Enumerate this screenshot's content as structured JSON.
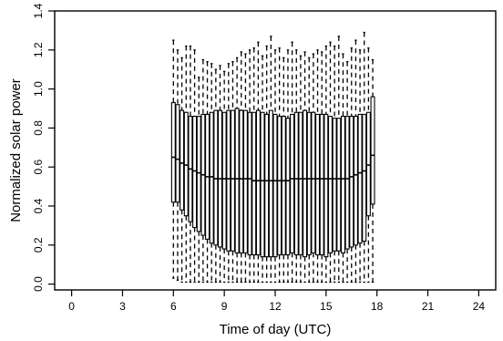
{
  "chart_data": {
    "type": "box",
    "xlabel": "Time of day (UTC)",
    "ylabel": "Normalized solar power",
    "xlim": [
      -1,
      25
    ],
    "ylim": [
      -0.03,
      1.4
    ],
    "xticks": [
      "0",
      "3",
      "6",
      "9",
      "12",
      "15",
      "18",
      "21",
      "24"
    ],
    "yticks": [
      "0.0",
      "0.2",
      "0.4",
      "0.6",
      "0.8",
      "1.0",
      "1.2",
      "1.4"
    ],
    "grid": false,
    "bin_width_hours": 0.25,
    "start_hour": 6.0,
    "q3": [
      0.93,
      0.92,
      0.89,
      0.88,
      0.86,
      0.86,
      0.86,
      0.87,
      0.87,
      0.88,
      0.89,
      0.89,
      0.88,
      0.89,
      0.89,
      0.9,
      0.89,
      0.89,
      0.88,
      0.88,
      0.89,
      0.88,
      0.87,
      0.89,
      0.87,
      0.86,
      0.86,
      0.85,
      0.87,
      0.88,
      0.88,
      0.89,
      0.88,
      0.88,
      0.87,
      0.87,
      0.87,
      0.86,
      0.85,
      0.85,
      0.86,
      0.86,
      0.86,
      0.86,
      0.87,
      0.87,
      0.88,
      0.96
    ],
    "q1": [
      0.42,
      0.42,
      0.38,
      0.35,
      0.32,
      0.29,
      0.27,
      0.25,
      0.23,
      0.21,
      0.2,
      0.19,
      0.18,
      0.17,
      0.17,
      0.16,
      0.16,
      0.16,
      0.15,
      0.15,
      0.15,
      0.14,
      0.14,
      0.14,
      0.14,
      0.15,
      0.15,
      0.15,
      0.16,
      0.15,
      0.15,
      0.14,
      0.15,
      0.16,
      0.15,
      0.15,
      0.14,
      0.16,
      0.17,
      0.17,
      0.16,
      0.18,
      0.19,
      0.2,
      0.21,
      0.22,
      0.35,
      0.41
    ],
    "median": [
      0.65,
      0.64,
      0.62,
      0.61,
      0.59,
      0.58,
      0.57,
      0.56,
      0.55,
      0.55,
      0.54,
      0.54,
      0.54,
      0.54,
      0.54,
      0.54,
      0.54,
      0.54,
      0.54,
      0.53,
      0.53,
      0.53,
      0.53,
      0.53,
      0.53,
      0.53,
      0.53,
      0.53,
      0.54,
      0.54,
      0.54,
      0.54,
      0.54,
      0.54,
      0.54,
      0.54,
      0.54,
      0.54,
      0.54,
      0.54,
      0.54,
      0.54,
      0.55,
      0.56,
      0.57,
      0.58,
      0.61,
      0.66
    ],
    "upper_whisker": [
      1.25,
      1.2,
      1.16,
      1.22,
      1.22,
      1.2,
      1.06,
      1.15,
      1.14,
      1.13,
      1.1,
      1.12,
      1.09,
      1.13,
      1.14,
      1.16,
      1.19,
      1.18,
      1.2,
      1.21,
      1.24,
      1.17,
      1.22,
      1.27,
      1.2,
      1.21,
      1.16,
      1.2,
      1.24,
      1.2,
      1.17,
      1.19,
      1.16,
      1.18,
      1.2,
      1.19,
      1.22,
      1.24,
      1.22,
      1.27,
      1.18,
      1.14,
      1.21,
      1.25,
      1.2,
      1.29,
      1.21,
      1.15
    ],
    "lower_whisker": [
      0.03,
      0.02,
      0.01,
      0.01,
      0.01,
      0.01,
      0.01,
      0.01,
      0.01,
      0.01,
      0.01,
      0.01,
      0.01,
      0.01,
      0.01,
      0.01,
      0.01,
      0.01,
      0.01,
      0.01,
      0.01,
      0.01,
      0.01,
      0.01,
      0.01,
      0.01,
      0.01,
      0.01,
      0.01,
      0.01,
      0.01,
      0.01,
      0.01,
      0.01,
      0.01,
      0.01,
      0.01,
      0.01,
      0.01,
      0.01,
      0.01,
      0.01,
      0.01,
      0.01,
      0.01,
      0.01,
      0.01,
      0.01
    ]
  }
}
